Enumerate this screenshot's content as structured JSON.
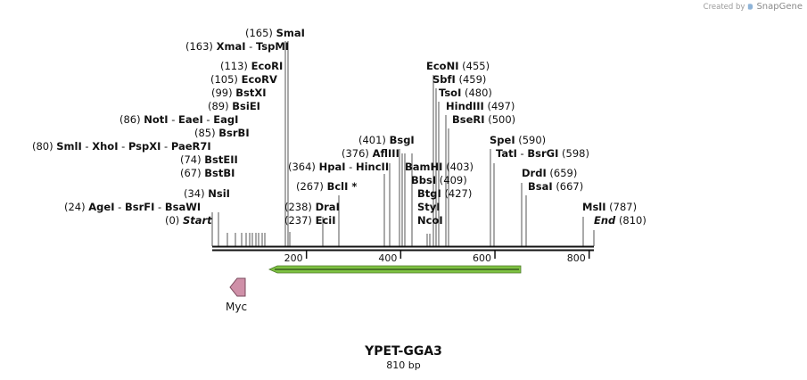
{
  "credit": {
    "prefix": "Created by",
    "brand": "SnapGene"
  },
  "plasmid": {
    "name": "YPET-GGA3",
    "length_label": "810 bp",
    "length": 810
  },
  "axis": {
    "ticks": [
      200,
      400,
      600,
      800
    ]
  },
  "features": {
    "myc": {
      "name": "Myc",
      "start": 34,
      "end": 64,
      "direction": "reverse",
      "color": "#cf90a8"
    },
    "orf": {
      "start": 120,
      "end": 650,
      "direction": "reverse",
      "color": "#7ec242"
    }
  },
  "sites": [
    {
      "pos": 0,
      "pos_label": "(0)",
      "label": "Start",
      "italic": true,
      "parts": [
        "Start"
      ]
    },
    {
      "pos": 24,
      "pos_label": "(24)",
      "label": "AgeI - BsrFI - BsaWI",
      "parts": [
        "AgeI",
        "BsrFI",
        "BsaWI"
      ]
    },
    {
      "pos": 34,
      "pos_label": "(34)",
      "label": "NsiI",
      "parts": [
        "NsiI"
      ]
    },
    {
      "pos": 67,
      "pos_label": "(67)",
      "label": "BstBI",
      "parts": [
        "BstBI"
      ]
    },
    {
      "pos": 74,
      "pos_label": "(74)",
      "label": "BstEII",
      "parts": [
        "BstEII"
      ]
    },
    {
      "pos": 80,
      "pos_label": "(80)",
      "label": "SmlI - XhoI - PspXI - PaeR7I",
      "parts": [
        "SmlI",
        "XhoI",
        "PspXI",
        "PaeR7I"
      ]
    },
    {
      "pos": 85,
      "pos_label": "(85)",
      "label": "BsrBI",
      "parts": [
        "BsrBI"
      ]
    },
    {
      "pos": 86,
      "pos_label": "(86)",
      "label": "NotI - EaeI - EagI",
      "parts": [
        "NotI",
        "EaeI",
        "EagI"
      ]
    },
    {
      "pos": 89,
      "pos_label": "(89)",
      "label": "BsiEI",
      "parts": [
        "BsiEI"
      ]
    },
    {
      "pos": 99,
      "pos_label": "(99)",
      "label": "BstXI",
      "parts": [
        "BstXI"
      ]
    },
    {
      "pos": 105,
      "pos_label": "(105)",
      "label": "EcoRV",
      "parts": [
        "EcoRV"
      ]
    },
    {
      "pos": 113,
      "pos_label": "(113)",
      "label": "EcoRI",
      "parts": [
        "EcoRI"
      ]
    },
    {
      "pos": 163,
      "pos_label": "(163)",
      "label": "XmaI - TspMI",
      "parts": [
        "XmaI",
        "TspMI"
      ]
    },
    {
      "pos": 165,
      "pos_label": "(165)",
      "label": "SmaI",
      "parts": [
        "SmaI"
      ]
    },
    {
      "pos": 237,
      "pos_label": "(237)",
      "label": "EciI",
      "parts": [
        "EciI"
      ]
    },
    {
      "pos": 238,
      "pos_label": "(238)",
      "label": "DraI",
      "parts": [
        "DraI"
      ]
    },
    {
      "pos": 267,
      "pos_label": "(267)",
      "label": "BclI *",
      "parts": [
        "BclI *"
      ]
    },
    {
      "pos": 364,
      "pos_label": "(364)",
      "label": "HpaI - HincII",
      "parts": [
        "HpaI",
        "HincII"
      ]
    },
    {
      "pos": 376,
      "pos_label": "(376)",
      "label": "AflIII",
      "parts": [
        "AflIII"
      ]
    },
    {
      "pos": 401,
      "pos_label": "(401)",
      "label": "BsgI",
      "parts": [
        "BsgI"
      ]
    },
    {
      "pos": 403,
      "pos_label": "(403)",
      "label": "BamHI",
      "parts": [
        "BamHI"
      ]
    },
    {
      "pos": 409,
      "pos_label": "(409)",
      "label": "BbsI",
      "parts": [
        "BbsI"
      ]
    },
    {
      "pos": 427,
      "pos_label": "(427)",
      "label": "BtgI",
      "parts": [
        "BtgI"
      ]
    },
    {
      "pos": 436,
      "pos_label": "",
      "label": "StyI",
      "parts": [
        "StyI"
      ]
    },
    {
      "pos": 437,
      "pos_label": "",
      "label": "NcoI",
      "parts": [
        "NcoI"
      ]
    },
    {
      "pos": 455,
      "pos_label": "(455)",
      "label": "EcoNI",
      "parts": [
        "EcoNI"
      ]
    },
    {
      "pos": 459,
      "pos_label": "(459)",
      "label": "SbfI",
      "parts": [
        "SbfI"
      ]
    },
    {
      "pos": 480,
      "pos_label": "(480)",
      "label": "TsoI",
      "parts": [
        "TsoI"
      ]
    },
    {
      "pos": 497,
      "pos_label": "(497)",
      "label": "HindIII",
      "parts": [
        "HindIII"
      ]
    },
    {
      "pos": 500,
      "pos_label": "(500)",
      "label": "BseRI",
      "parts": [
        "BseRI"
      ]
    },
    {
      "pos": 590,
      "pos_label": "(590)",
      "label": "SpeI",
      "parts": [
        "SpeI"
      ]
    },
    {
      "pos": 598,
      "pos_label": "(598)",
      "label": "TatI - BsrGI",
      "parts": [
        "TatI",
        "BsrGI"
      ]
    },
    {
      "pos": 659,
      "pos_label": "(659)",
      "label": "DrdI",
      "parts": [
        "DrdI"
      ]
    },
    {
      "pos": 667,
      "pos_label": "(667)",
      "label": "BsaI",
      "parts": [
        "BsaI"
      ]
    },
    {
      "pos": 787,
      "pos_label": "(787)",
      "label": "MslI",
      "parts": [
        "MslI"
      ]
    },
    {
      "pos": 810,
      "pos_label": "(810)",
      "label": "End",
      "italic": true,
      "parts": [
        "End"
      ]
    }
  ]
}
